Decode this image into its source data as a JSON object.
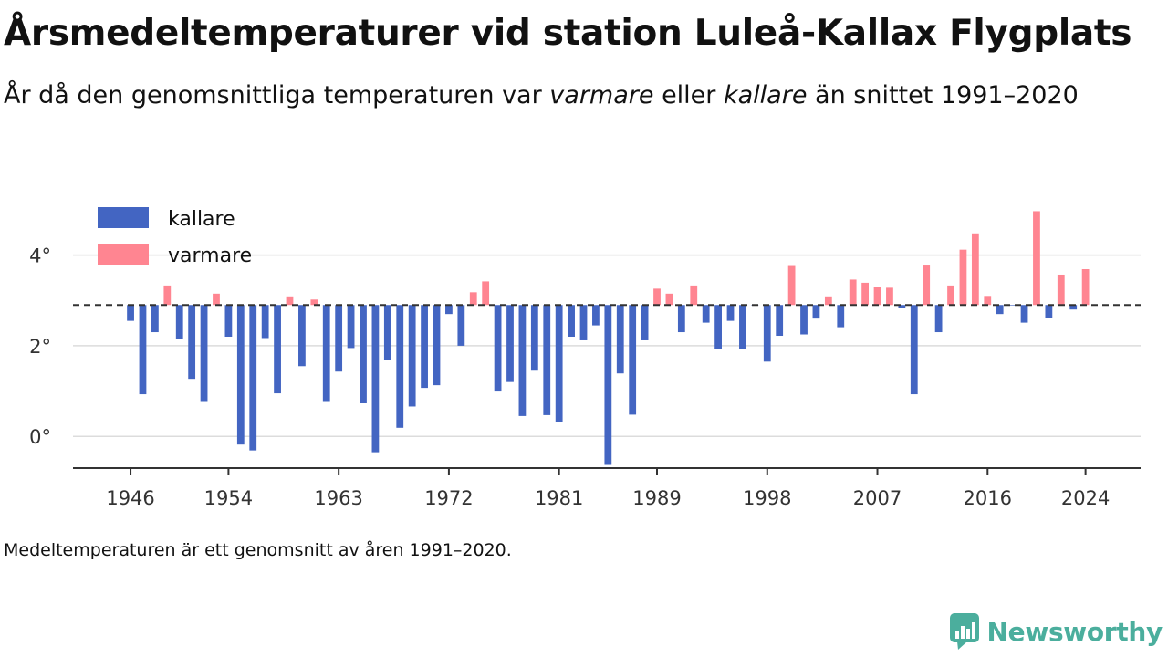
{
  "title": "Årsmedeltemperaturer vid station Luleå-Kallax Flygplats",
  "subtitle": {
    "part1": "År då den genomsnittliga temperaturen var ",
    "warmer": "varmare",
    "part2": " eller ",
    "colder": "kallare",
    "part3": " än snittet 1991–2020"
  },
  "footnote": "Medeltemperaturen är ett genomsnitt av åren 1991–2020.",
  "brand": {
    "name": "Newsworthy",
    "icon": "newsworthy-logo-icon",
    "color": "#4bae9d"
  },
  "chart_data": {
    "type": "bar",
    "baseline": 2.9,
    "baseline_style": "dashed",
    "ylim": [
      -0.7,
      5.1
    ],
    "yticks": [
      0,
      2,
      4
    ],
    "ytick_labels": [
      "0°",
      "2°",
      "4°"
    ],
    "xlim": [
      1941.3,
      2028.5
    ],
    "xticks": [
      1946,
      1954,
      1963,
      1972,
      1981,
      1989,
      1998,
      2007,
      2016,
      2024
    ],
    "xtick_labels": [
      "1946",
      "1954",
      "1963",
      "1972",
      "1981",
      "1989",
      "1998",
      "2007",
      "2016",
      "2024"
    ],
    "grid": "horizontal",
    "legend_position": "top-left",
    "series": [
      {
        "name": "kallare",
        "color": "#4365c2"
      },
      {
        "name": "varmare",
        "color": "#ff8591"
      }
    ],
    "x": [
      1946,
      1947,
      1948,
      1949,
      1950,
      1951,
      1952,
      1953,
      1954,
      1955,
      1956,
      1957,
      1958,
      1959,
      1960,
      1961,
      1962,
      1963,
      1964,
      1965,
      1966,
      1967,
      1968,
      1969,
      1970,
      1971,
      1972,
      1973,
      1974,
      1975,
      1976,
      1977,
      1978,
      1979,
      1980,
      1981,
      1982,
      1983,
      1984,
      1985,
      1986,
      1987,
      1988,
      1989,
      1990,
      1991,
      1992,
      1993,
      1994,
      1995,
      1996,
      1997,
      1998,
      1999,
      2000,
      2001,
      2002,
      2003,
      2004,
      2005,
      2006,
      2007,
      2008,
      2009,
      2010,
      2011,
      2012,
      2013,
      2014,
      2015,
      2016,
      2017,
      2018,
      2019,
      2020,
      2021,
      2022,
      2023,
      2024
    ],
    "values": [
      2.55,
      0.93,
      2.3,
      3.33,
      2.15,
      1.27,
      0.76,
      3.15,
      2.2,
      -0.18,
      -0.31,
      2.17,
      0.95,
      3.09,
      1.55,
      3.02,
      0.76,
      1.43,
      1.95,
      0.73,
      -0.35,
      1.69,
      0.19,
      0.66,
      1.07,
      1.13,
      2.7,
      2.0,
      3.18,
      3.42,
      0.99,
      1.2,
      0.45,
      1.45,
      0.47,
      0.32,
      2.2,
      2.12,
      2.45,
      -0.63,
      1.39,
      0.48,
      2.12,
      3.26,
      3.15,
      2.3,
      3.33,
      2.51,
      1.92,
      2.55,
      1.93,
      2.89,
      1.65,
      2.22,
      3.78,
      2.25,
      2.6,
      3.09,
      2.41,
      3.46,
      3.39,
      3.3,
      3.28,
      2.83,
      0.93,
      3.79,
      2.3,
      3.33,
      4.12,
      4.48,
      3.1,
      2.7,
      2.89,
      2.51,
      4.97,
      2.62,
      3.57,
      2.8,
      3.69
    ]
  }
}
